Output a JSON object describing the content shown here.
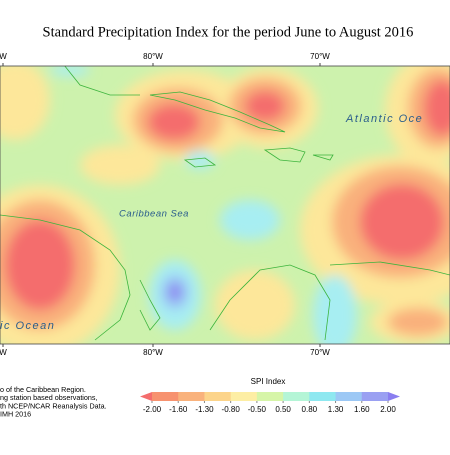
{
  "title": "Standard Precipitation Index for the period June to August 2016",
  "map": {
    "top_labels": [
      "W",
      "80°W",
      "70°W"
    ],
    "bottom_labels": [
      "W",
      "80°W",
      "70°W"
    ],
    "places": [
      "Atlantic Oce",
      "Caribbean Sea",
      "ic Ocean"
    ]
  },
  "credits": [
    "o of the Caribbean Region.",
    "ng station based observations,",
    "th NCEP/NCAR Reanalysis Data.",
    "IMH 2016"
  ],
  "legend": {
    "title": "SPI Index",
    "colors": [
      "#f46d6d",
      "#f7926f",
      "#f9b27c",
      "#fcd48a",
      "#fdeea4",
      "#d6f5a8",
      "#b4f5d6",
      "#8ee8f0",
      "#9cc8f5",
      "#9aa0f2",
      "#8a7ef0"
    ],
    "ticks": [
      {
        "value": -2,
        "label": "-2.00"
      },
      {
        "value": -1.6,
        "label": "-1.60"
      },
      {
        "value": -1.3,
        "label": "-1.30"
      },
      {
        "value": -0.8,
        "label": "-0.80"
      },
      {
        "value": -0.5,
        "label": "-0.50"
      },
      {
        "value": 0.5,
        "label": "0.50"
      },
      {
        "value": 0.8,
        "label": "0.80"
      },
      {
        "value": 1.3,
        "label": "1.30"
      },
      {
        "value": 1.6,
        "label": "1.60"
      },
      {
        "value": 2,
        "label": "2.00"
      }
    ]
  }
}
